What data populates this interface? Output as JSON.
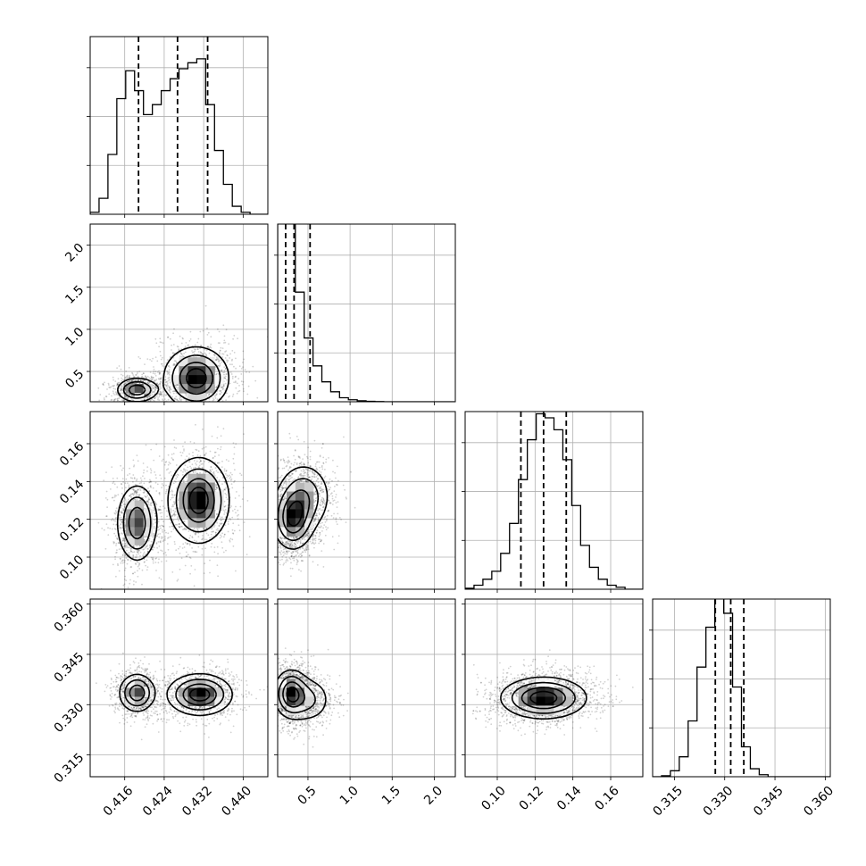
{
  "chart_data": {
    "type": "corner",
    "parameters": [
      {
        "range": [
          0.409,
          0.445
        ],
        "ticks": [
          0.416,
          0.424,
          0.432,
          0.44
        ],
        "tick_labels": [
          "0.416",
          "0.424",
          "0.432",
          "0.440"
        ]
      },
      {
        "range": [
          0.14,
          2.25
        ],
        "ticks": [
          0.5,
          1.0,
          1.5,
          2.0
        ],
        "tick_labels": [
          "0.5",
          "1.0",
          "1.5",
          "2.0"
        ]
      },
      {
        "range": [
          0.083,
          0.177
        ],
        "ticks": [
          0.1,
          0.12,
          0.14,
          0.16
        ],
        "tick_labels": [
          "0.10",
          "0.12",
          "0.14",
          "0.16"
        ]
      },
      {
        "range": [
          0.3085,
          0.3615
        ],
        "ticks": [
          0.315,
          0.33,
          0.345,
          0.36
        ],
        "tick_labels": [
          "0.315",
          "0.330",
          "0.345",
          "0.360"
        ]
      }
    ],
    "histograms": [
      {
        "quantiles": [
          0.4188,
          0.4267,
          0.4328
        ],
        "bin_edges": [
          0.409,
          0.4108,
          0.4126,
          0.4144,
          0.4162,
          0.418,
          0.4198,
          0.4216,
          0.4234,
          0.4252,
          0.427,
          0.4288,
          0.4306,
          0.4324,
          0.4342,
          0.436,
          0.4378,
          0.4396,
          0.4414,
          0.4432,
          0.445
        ],
        "counts": [
          0.01,
          0.08,
          0.3,
          0.58,
          0.72,
          0.62,
          0.5,
          0.55,
          0.62,
          0.68,
          0.73,
          0.76,
          0.78,
          0.55,
          0.32,
          0.15,
          0.04,
          0.01,
          0.0,
          0.0
        ]
      },
      {
        "quantiles": [
          0.235,
          0.335,
          0.525
        ],
        "bin_edges": [
          0.14,
          0.245,
          0.35,
          0.455,
          0.56,
          0.665,
          0.77,
          0.875,
          0.98,
          1.085,
          1.19,
          1.295,
          1.4,
          1.505,
          1.61,
          1.715,
          1.82,
          1.925,
          2.03,
          2.135,
          2.24
        ],
        "counts": [
          0.98,
          0.9,
          0.55,
          0.32,
          0.18,
          0.1,
          0.05,
          0.02,
          0.01,
          0.005,
          0.002,
          0.001,
          0.0,
          0.0,
          0.0,
          0.0,
          0.0,
          0.0,
          0.0,
          0.0
        ]
      },
      {
        "quantiles": [
          0.1125,
          0.1245,
          0.1365
        ],
        "bin_edges": [
          0.083,
          0.0877,
          0.0924,
          0.0971,
          0.1018,
          0.1065,
          0.1112,
          0.1159,
          0.1206,
          0.1253,
          0.13,
          0.1347,
          0.1394,
          0.1441,
          0.1488,
          0.1535,
          0.1582,
          0.1629,
          0.1676,
          0.1723,
          0.177
        ],
        "counts": [
          0.005,
          0.02,
          0.05,
          0.09,
          0.18,
          0.33,
          0.55,
          0.75,
          0.88,
          0.86,
          0.8,
          0.65,
          0.42,
          0.22,
          0.11,
          0.05,
          0.02,
          0.01,
          0.0,
          0.0
        ]
      },
      {
        "quantiles": [
          0.3272,
          0.3318,
          0.3357
        ],
        "bin_edges": [
          0.3085,
          0.31115,
          0.3138,
          0.31645,
          0.3191,
          0.32175,
          0.3244,
          0.32705,
          0.3297,
          0.33235,
          0.335,
          0.33765,
          0.3403,
          0.34295,
          0.3456,
          0.34825,
          0.3509,
          0.35355,
          0.3562,
          0.35885,
          0.3615
        ],
        "counts": [
          0.0,
          0.005,
          0.03,
          0.1,
          0.28,
          0.55,
          0.75,
          0.95,
          0.82,
          0.45,
          0.15,
          0.04,
          0.01,
          0.0,
          0.0,
          0.0,
          0.0,
          0.0,
          0.0,
          0.0
        ]
      }
    ],
    "density_blobs": [
      {
        "px": 0,
        "py": 1,
        "blobs": [
          {
            "mx": 0.4185,
            "my": 0.28,
            "sx": 0.002,
            "sy": 0.07,
            "w": 0.45
          },
          {
            "mx": 0.4305,
            "my": 0.42,
            "sx": 0.0032,
            "sy": 0.18,
            "w": 0.55
          }
        ]
      },
      {
        "px": 0,
        "py": 2,
        "blobs": [
          {
            "mx": 0.4185,
            "my": 0.118,
            "sx": 0.002,
            "sy": 0.01,
            "w": 0.45
          },
          {
            "mx": 0.431,
            "my": 0.13,
            "sx": 0.003,
            "sy": 0.011,
            "w": 0.55
          }
        ]
      },
      {
        "px": 1,
        "py": 2,
        "blobs": [
          {
            "mx": 0.32,
            "my": 0.12,
            "sx": 0.12,
            "sy": 0.008,
            "w": 0.6
          },
          {
            "mx": 0.45,
            "my": 0.132,
            "sx": 0.16,
            "sy": 0.009,
            "w": 0.4
          }
        ]
      },
      {
        "px": 0,
        "py": 3,
        "blobs": [
          {
            "mx": 0.4185,
            "my": 0.3335,
            "sx": 0.0018,
            "sy": 0.0028,
            "w": 0.45
          },
          {
            "mx": 0.4312,
            "my": 0.333,
            "sx": 0.0032,
            "sy": 0.003,
            "w": 0.55
          }
        ]
      },
      {
        "px": 1,
        "py": 3,
        "blobs": [
          {
            "mx": 0.3,
            "my": 0.3333,
            "sx": 0.1,
            "sy": 0.0035,
            "w": 0.7
          },
          {
            "mx": 0.5,
            "my": 0.3315,
            "sx": 0.14,
            "sy": 0.0035,
            "w": 0.3
          }
        ]
      },
      {
        "px": 2,
        "py": 3,
        "blobs": [
          {
            "mx": 0.1245,
            "my": 0.332,
            "sx": 0.011,
            "sy": 0.003,
            "w": 1.0
          }
        ]
      }
    ]
  }
}
